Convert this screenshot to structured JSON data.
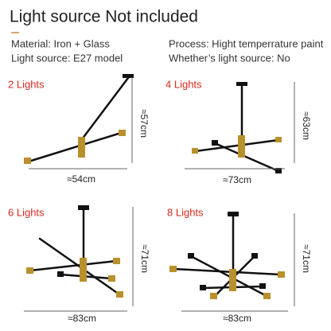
{
  "header": {
    "title": "Light source Not included"
  },
  "specs": {
    "material": "Material: Iron + Glass",
    "process": "Process: Hight temperrature paint",
    "light_source": "Light source:  E27 model",
    "whether": "Whether’s light source: No"
  },
  "panels": [
    {
      "label": "2 Lights",
      "width": "≈54cm",
      "height": "≈57cm"
    },
    {
      "label": "4 Lights",
      "width": "≈73cm",
      "height": "≈63cm"
    },
    {
      "label": "6 Lights",
      "width": "≈83cm",
      "height": "≈71cm"
    },
    {
      "label": "8 Lights",
      "width": "≈83cm",
      "height": "≈71cm"
    }
  ]
}
